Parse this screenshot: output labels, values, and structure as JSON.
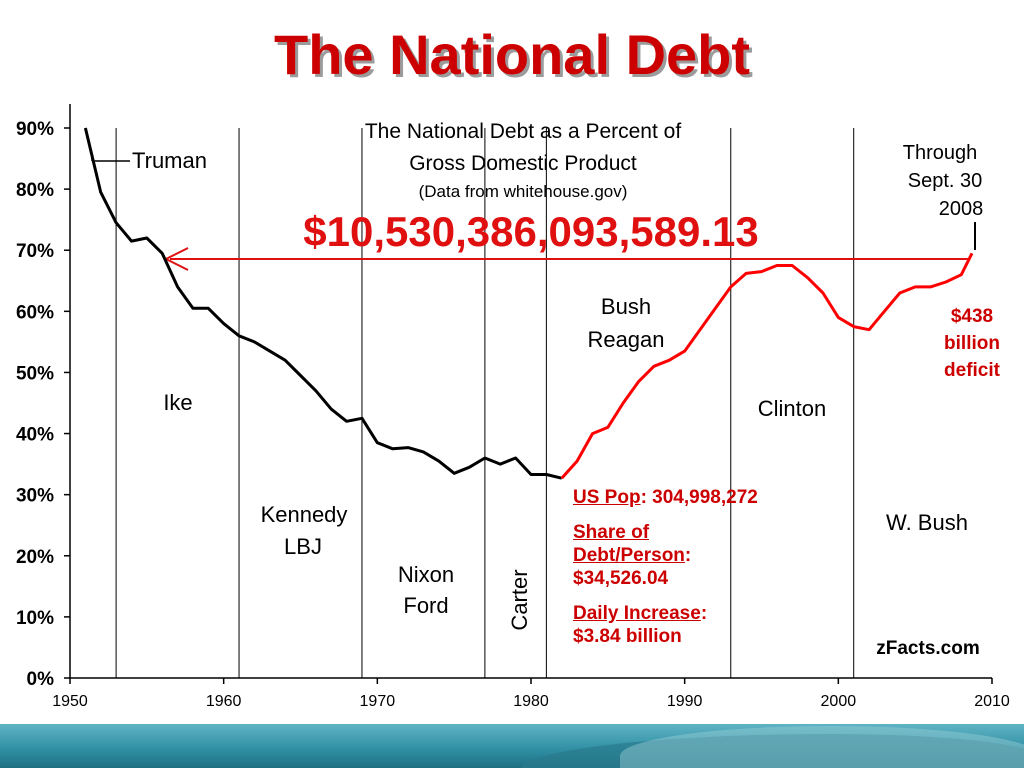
{
  "slide": {
    "title": "The National Debt"
  },
  "chart_data": {
    "type": "line",
    "title": "The National Debt as a Percent of Gross Domestic Product",
    "subtitle": "(Data from whitehouse.gov)",
    "headline_figure": "$10,530,386,093,589.13",
    "xlabel": "",
    "ylabel": "",
    "xlim": [
      1950,
      2010
    ],
    "ylim": [
      0,
      90
    ],
    "x_ticks": [
      "1950",
      "1960",
      "1970",
      "1980",
      "1990",
      "2000",
      "2010"
    ],
    "y_ticks": [
      "0%",
      "10%",
      "20%",
      "30%",
      "40%",
      "50%",
      "60%",
      "70%",
      "80%",
      "90%"
    ],
    "grid": false,
    "series": [
      {
        "color": "#000000",
        "x": [
          1951,
          1952,
          1953,
          1954,
          1955,
          1956,
          1957,
          1958,
          1959,
          1960,
          1961,
          1962,
          1963,
          1964,
          1965,
          1966,
          1967,
          1968,
          1969,
          1970,
          1971,
          1972,
          1973,
          1974,
          1975,
          1976,
          1977,
          1978,
          1979,
          1980,
          1981,
          1982
        ],
        "y": [
          90,
          79.5,
          74.5,
          71.5,
          72,
          69.5,
          64,
          60.5,
          60.5,
          58,
          56,
          55,
          53.5,
          52,
          49.5,
          47,
          44,
          42,
          42.5,
          38.5,
          37.5,
          37.7,
          37,
          35.5,
          33.5,
          34.5,
          36,
          35,
          36,
          33.3,
          33.3,
          32.7
        ]
      },
      {
        "color": "#ff0000",
        "x": [
          1982,
          1983,
          1984,
          1985,
          1986,
          1987,
          1988,
          1989,
          1990,
          1991,
          1992,
          1993,
          1994,
          1995,
          1996,
          1997,
          1998,
          1999,
          2000,
          2001,
          2002,
          2003,
          2004,
          2005,
          2006,
          2007,
          2008,
          2008.7
        ],
        "y": [
          32.7,
          35.5,
          40,
          41,
          45,
          48.5,
          51,
          52,
          53.5,
          57,
          60.5,
          64,
          66.2,
          66.5,
          67.5,
          67.5,
          65.5,
          63,
          59,
          57.5,
          57,
          60,
          63,
          64,
          64,
          64.8,
          66,
          69.5
        ]
      }
    ],
    "president_dividers": [
      1953,
      1961,
      1969,
      1977,
      1981,
      1993,
      2001
    ],
    "president_labels": [
      "Truman",
      "Ike",
      "Kennedy",
      "LBJ",
      "Nixon",
      "Ford",
      "Carter",
      "Bush",
      "Reagan",
      "Clinton",
      "W. Bush"
    ],
    "annotations": {
      "through_1": "Through",
      "through_2": "Sept. 30",
      "through_3": "2008",
      "deficit_1": "$438",
      "deficit_2": "billion",
      "deficit_3": "deficit",
      "pop_label": "US Pop",
      "pop_value": ": 304,998,272",
      "share_label_1": "Share of",
      "share_label_2": "Debt/Person",
      "share_value": "$34,526.04",
      "daily_label": "Daily Increase",
      "daily_value": "$3.84 billion",
      "source": "zFacts.com"
    }
  }
}
